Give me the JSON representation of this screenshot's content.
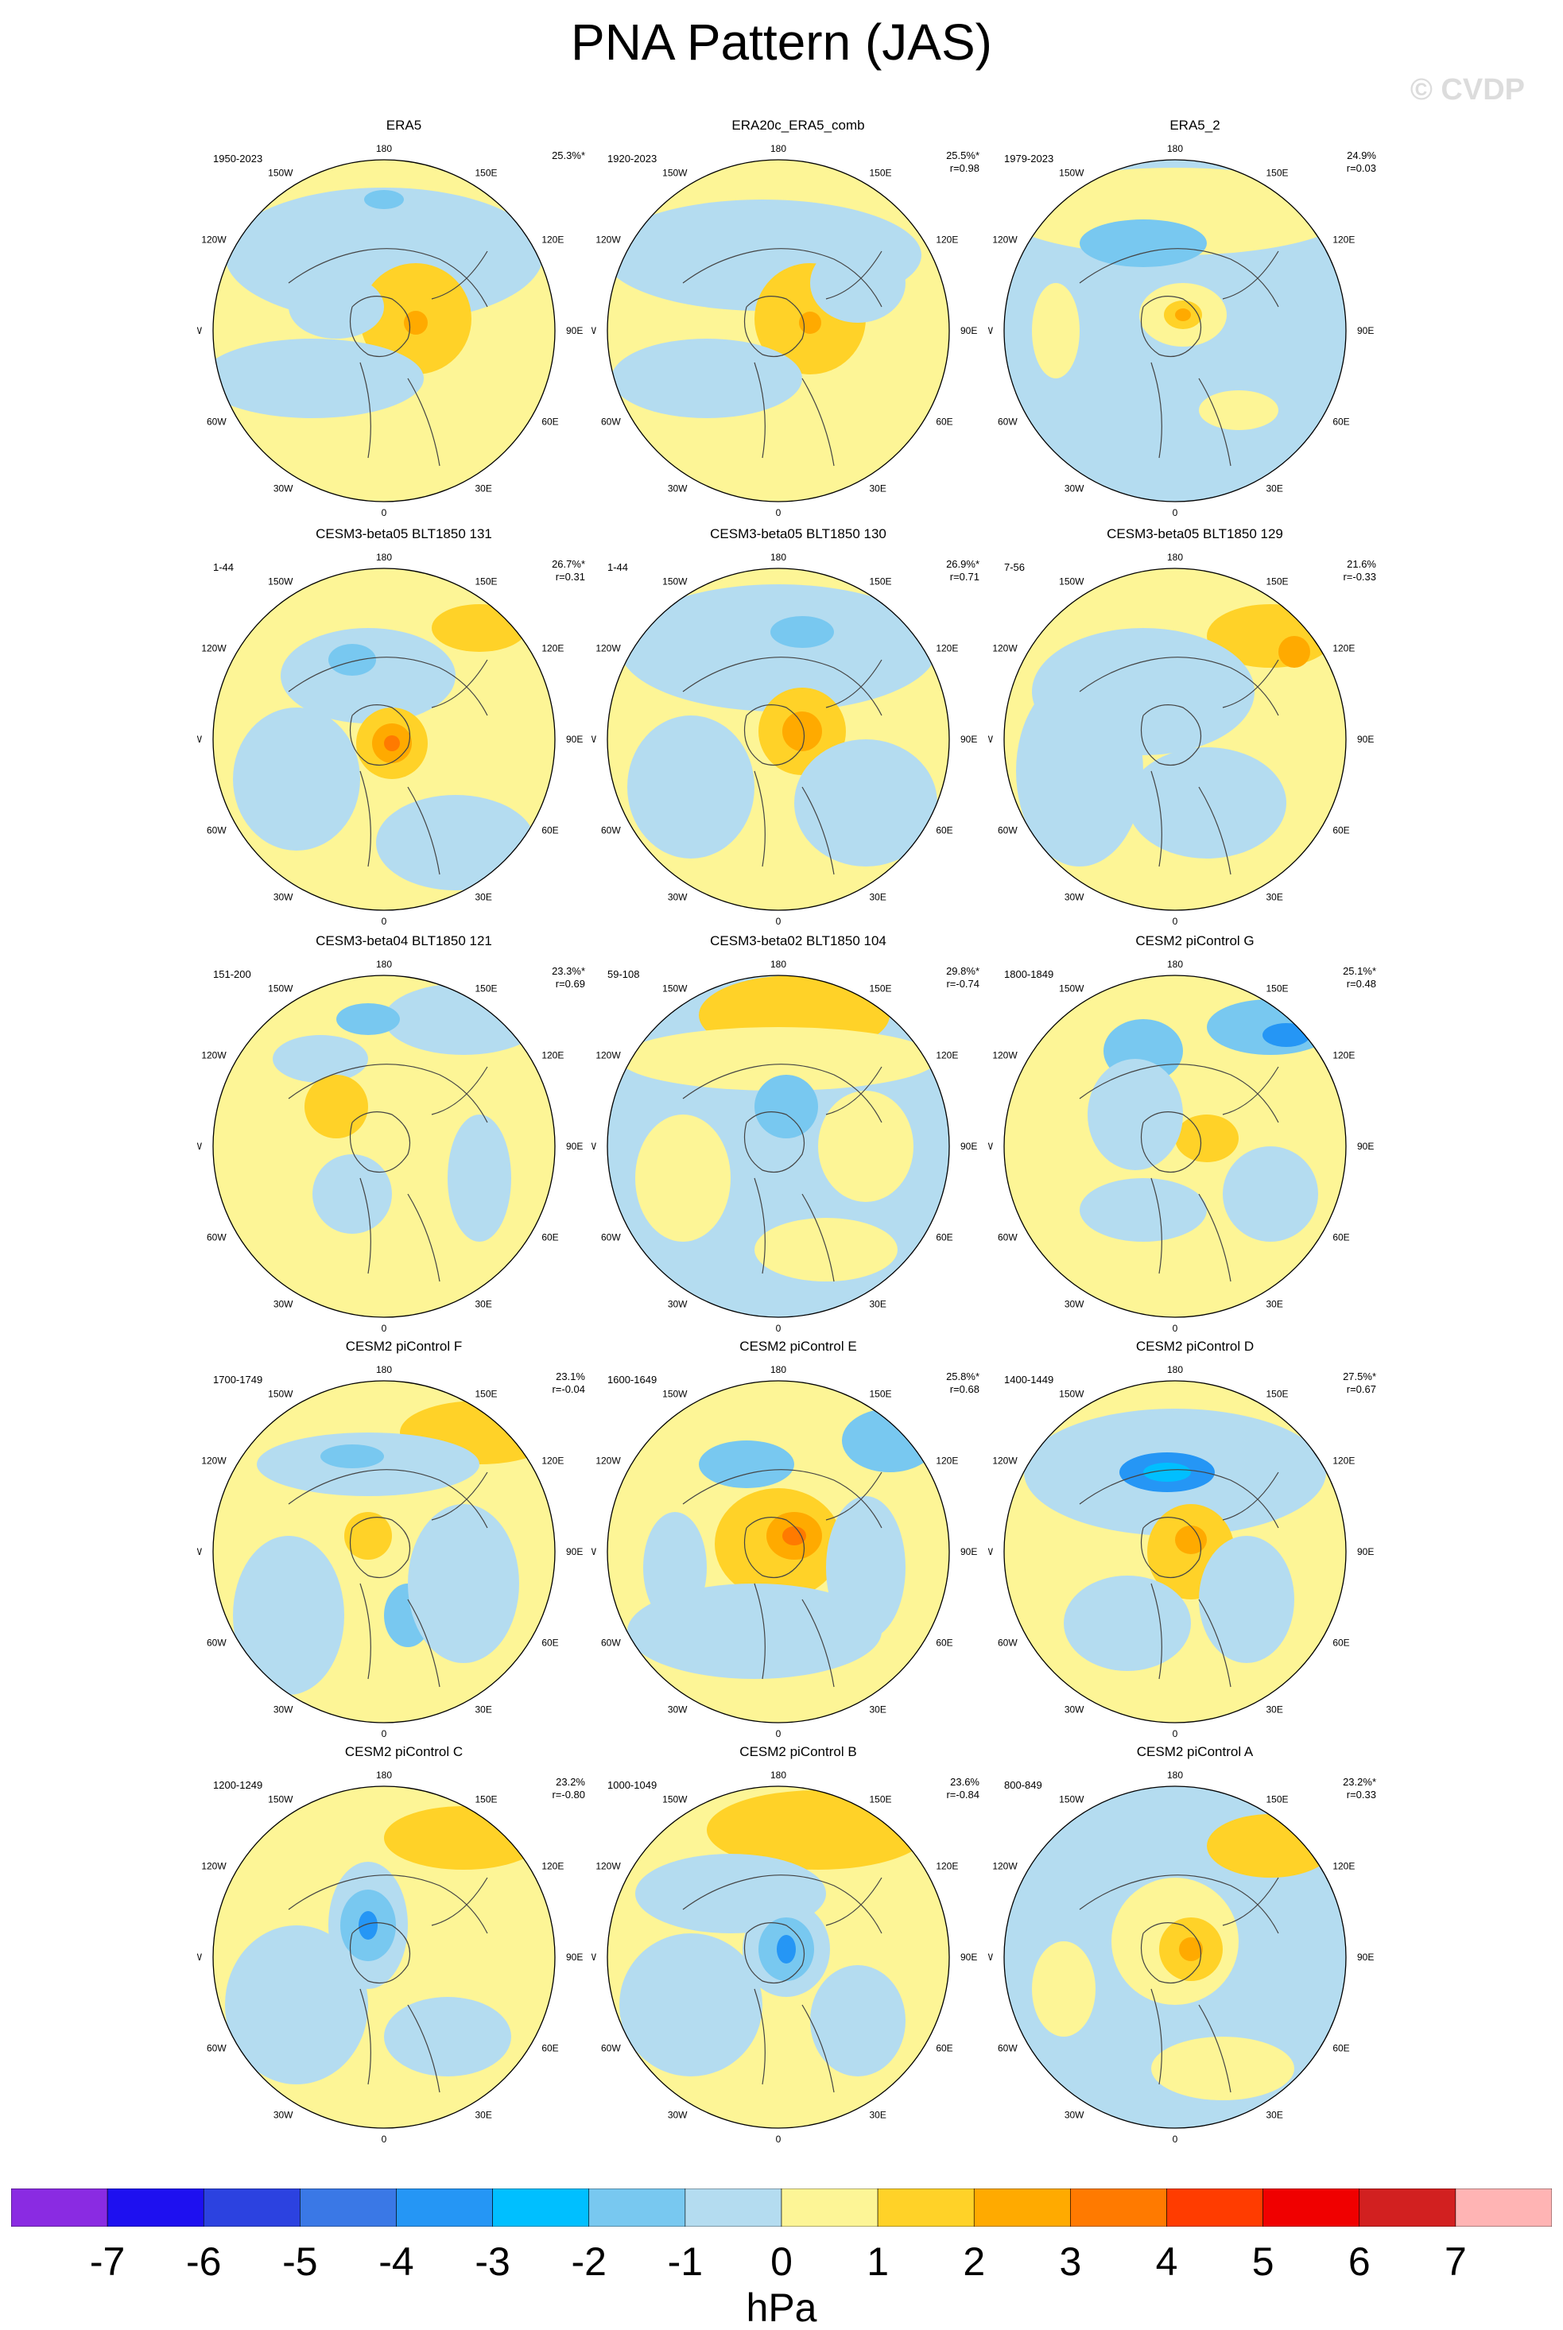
{
  "title": "PNA Pattern (JAS)",
  "watermark": "© CVDP",
  "longitude_labels": [
    "180",
    "150E",
    "120E",
    "90E",
    "60E",
    "30E",
    "0",
    "30W",
    "60W",
    "90W",
    "120W",
    "150W"
  ],
  "panels": [
    {
      "title": "ERA5",
      "period": "1950-2023",
      "variance": "25.3%*",
      "corr": ""
    },
    {
      "title": "ERA20c_ERA5_comb",
      "period": "1920-2023",
      "variance": "25.5%*",
      "corr": "r=0.98"
    },
    {
      "title": "ERA5_2",
      "period": "1979-2023",
      "variance": "24.9%",
      "corr": "r=0.03"
    },
    {
      "title": "CESM3-beta05 BLT1850 131",
      "period": "1-44",
      "variance": "26.7%*",
      "corr": "r=0.31"
    },
    {
      "title": "CESM3-beta05 BLT1850 130",
      "period": "1-44",
      "variance": "26.9%*",
      "corr": "r=0.71"
    },
    {
      "title": "CESM3-beta05 BLT1850 129",
      "period": "7-56",
      "variance": "21.6%",
      "corr": "r=-0.33"
    },
    {
      "title": "CESM3-beta04 BLT1850 121",
      "period": "151-200",
      "variance": "23.3%*",
      "corr": "r=0.69"
    },
    {
      "title": "CESM3-beta02 BLT1850 104",
      "period": "59-108",
      "variance": "29.8%*",
      "corr": "r=-0.74"
    },
    {
      "title": "CESM2 piControl G",
      "period": "1800-1849",
      "variance": "25.1%*",
      "corr": "r=0.48"
    },
    {
      "title": "CESM2 piControl F",
      "period": "1700-1749",
      "variance": "23.1%",
      "corr": "r=-0.04"
    },
    {
      "title": "CESM2 piControl E",
      "period": "1600-1649",
      "variance": "25.8%*",
      "corr": "r=0.68"
    },
    {
      "title": "CESM2 piControl D",
      "period": "1400-1449",
      "variance": "27.5%*",
      "corr": "r=0.67"
    },
    {
      "title": "CESM2 piControl C",
      "period": "1200-1249",
      "variance": "23.2%",
      "corr": "r=-0.80"
    },
    {
      "title": "CESM2 piControl B",
      "period": "1000-1049",
      "variance": "23.6%",
      "corr": "r=-0.84"
    },
    {
      "title": "CESM2 piControl A",
      "period": "800-849",
      "variance": "23.2%*",
      "corr": "r=0.33"
    }
  ],
  "colorbar": {
    "colors": [
      "#8a2be2",
      "#1e10f0",
      "#2c42e0",
      "#3a78e6",
      "#2596f5",
      "#00bfff",
      "#78c8f0",
      "#b4dcf0",
      "#fdf596",
      "#ffd228",
      "#ffaa00",
      "#ff7a00",
      "#ff3c00",
      "#f00000",
      "#d22020",
      "#ffb4b4"
    ],
    "labels": [
      "-7",
      "-6",
      "-5",
      "-4",
      "-3",
      "-2",
      "-1",
      "0",
      "1",
      "2",
      "3",
      "4",
      "5",
      "6",
      "7"
    ],
    "units": "hPa"
  }
}
